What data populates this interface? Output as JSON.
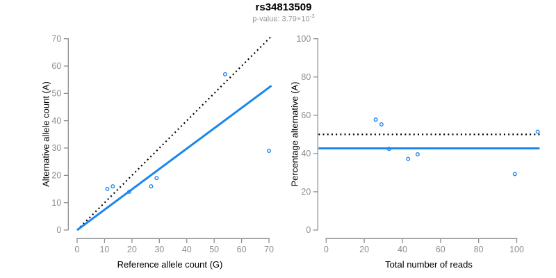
{
  "header": {
    "title": "rs34813509",
    "subtitle_base": "p-value: 3.79×10",
    "subtitle_exponent": "-3"
  },
  "colors": {
    "accent_blue": "#1C86EE",
    "line_black": "#000000",
    "axis_gray": "#8E8E8E",
    "tick_label_gray": "#8E8E8E",
    "subtitle_gray": "#999999",
    "background": "#FFFFFF"
  },
  "chart_data": [
    {
      "id": "allele-counts-scatter",
      "type": "scatter",
      "xlabel": "Reference allele count (G)",
      "ylabel": "Alternative allele count (A)",
      "xlim": [
        0,
        72
      ],
      "ylim": [
        0,
        71
      ],
      "xticks": [
        0,
        10,
        20,
        30,
        40,
        50,
        60,
        70
      ],
      "yticks": [
        0,
        10,
        20,
        30,
        40,
        50,
        60,
        70
      ],
      "grid": false,
      "legend": "none",
      "points": [
        {
          "x": 11,
          "y": 15
        },
        {
          "x": 13,
          "y": 16
        },
        {
          "x": 19,
          "y": 14
        },
        {
          "x": 27,
          "y": 16
        },
        {
          "x": 29,
          "y": 19
        },
        {
          "x": 54,
          "y": 57
        },
        {
          "x": 70,
          "y": 29
        }
      ],
      "lines": [
        {
          "name": "identity-line",
          "style": "dotted",
          "color": "#000000",
          "x1": 0,
          "y1": 0,
          "x2": 70.6,
          "y2": 70.6
        },
        {
          "name": "allelic-fit-line",
          "style": "solid",
          "color": "#1C86EE",
          "x1": 0,
          "y1": 0,
          "x2": 70.9,
          "y2": 52.8
        }
      ],
      "point_style": {
        "shape": "open-circle",
        "color": "#1C86EE"
      }
    },
    {
      "id": "percentage-vs-reads-scatter",
      "type": "scatter",
      "xlabel": "Total number of reads",
      "ylabel": "Percentage alternative (A)",
      "xlim": [
        -4,
        112
      ],
      "ylim": [
        0,
        100
      ],
      "xticks": [
        0,
        20,
        40,
        60,
        80,
        100
      ],
      "yticks": [
        0,
        20,
        40,
        60,
        80,
        100
      ],
      "grid": false,
      "legend": "none",
      "points": [
        {
          "x": 26,
          "y": 57.7
        },
        {
          "x": 29,
          "y": 55.2
        },
        {
          "x": 33,
          "y": 42.4
        },
        {
          "x": 43,
          "y": 37.2
        },
        {
          "x": 48,
          "y": 39.6
        },
        {
          "x": 99,
          "y": 29.3
        },
        {
          "x": 111,
          "y": 51.4
        }
      ],
      "lines": [
        {
          "name": "expected-50pct-line",
          "style": "dotted",
          "color": "#000000",
          "x1": -4,
          "y1": 50,
          "x2": 112,
          "y2": 50
        },
        {
          "name": "mean-pct-line",
          "style": "solid",
          "color": "#1C86EE",
          "x1": -4,
          "y1": 42.7,
          "x2": 112,
          "y2": 42.7
        }
      ],
      "point_style": {
        "shape": "open-circle",
        "color": "#1C86EE"
      }
    }
  ]
}
